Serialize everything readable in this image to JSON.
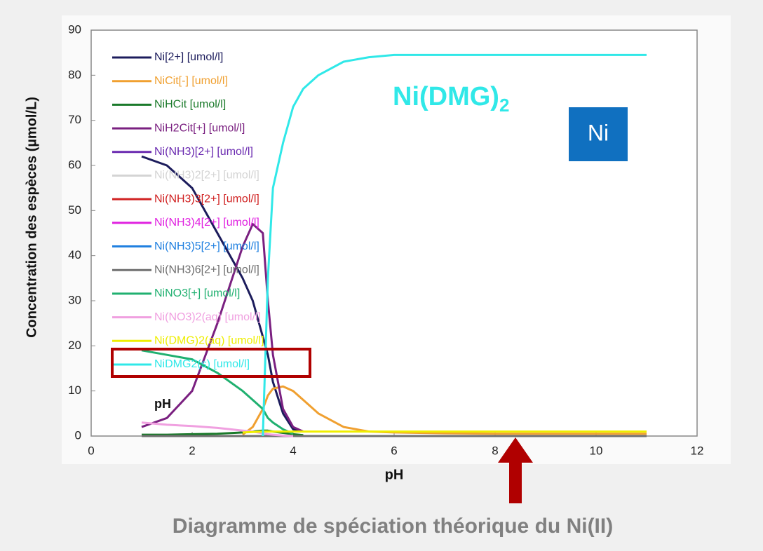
{
  "chart_data": {
    "type": "line",
    "title": "Diagramme de spéciation théorique du Ni(II)",
    "x_label": "pH",
    "y_label": "Concentration des espèces (µmol/L)",
    "x": [
      1,
      1.5,
      2,
      2.5,
      3,
      3.2,
      3.4,
      3.5,
      3.6,
      3.8,
      4,
      4.2,
      4.5,
      5,
      5.5,
      6,
      7,
      8,
      9,
      10,
      11
    ],
    "xlim": [
      0,
      12
    ],
    "xticks": [
      0,
      2,
      4,
      6,
      8,
      10,
      12
    ],
    "ylim": [
      0,
      90
    ],
    "yticks": [
      0,
      10,
      20,
      30,
      40,
      50,
      60,
      70,
      80,
      90
    ],
    "grid": false,
    "legend": "upper left",
    "series": [
      {
        "name": "Ni[2+] [umol/l]",
        "color": "#1c1c5c",
        "values": [
          62,
          60,
          55,
          45,
          35,
          30,
          22,
          18,
          12,
          5,
          1.5,
          1,
          null,
          null,
          null,
          null,
          null,
          null,
          null,
          null,
          null
        ]
      },
      {
        "name": "NiCit[-] [umol/l]",
        "color": "#f0a030",
        "values": [
          null,
          null,
          null,
          null,
          0.3,
          2,
          6,
          9,
          10.5,
          11,
          10,
          8,
          5,
          2,
          1,
          0.8,
          0.6,
          0.5,
          0.5,
          0.5,
          0.5
        ]
      },
      {
        "name": "NiHCit [umol/l]",
        "color": "#1a7a2a",
        "values": [
          0.3,
          0.3,
          0.4,
          0.5,
          0.8,
          1,
          1.2,
          1.2,
          1,
          0.7,
          0.4,
          0.2,
          null,
          null,
          null,
          null,
          null,
          null,
          null,
          null,
          null
        ]
      },
      {
        "name": "NiH2Cit[+] [umol/l]",
        "color": "#7a2080",
        "values": [
          2,
          4,
          10,
          25,
          42,
          47,
          45,
          30,
          18,
          6,
          2,
          1,
          null,
          null,
          null,
          null,
          null,
          null,
          null,
          null,
          null
        ]
      },
      {
        "name": "Ni(NH3)[2+] [umol/l]",
        "color": "#6a2ab0",
        "values": [
          0,
          0,
          0,
          0,
          0,
          0,
          0,
          0,
          0,
          0,
          0,
          0,
          0,
          0,
          0,
          0,
          0,
          0,
          0,
          0,
          0
        ]
      },
      {
        "name": "Ni(NH3)2[2+] [umol/l]",
        "color": "#d4d4d4",
        "values": [
          0,
          0,
          0,
          0,
          0,
          0,
          0,
          0,
          0,
          0,
          0,
          0,
          0,
          0,
          0,
          0,
          0,
          0,
          0,
          0,
          0
        ]
      },
      {
        "name": "Ni(NH3)3[2+] [umol/l]",
        "color": "#d02020",
        "values": [
          0,
          0,
          0,
          0,
          0,
          0,
          0,
          0,
          0,
          0,
          0,
          0,
          0,
          0,
          0,
          0,
          0,
          0,
          0,
          0,
          0
        ]
      },
      {
        "name": "Ni(NH3)4[2+] [umol/l]",
        "color": "#e020e0",
        "values": [
          0,
          0,
          0,
          0,
          0,
          0,
          0,
          0,
          0,
          0,
          0,
          0,
          0,
          0,
          0,
          0,
          0,
          0,
          0,
          0,
          0
        ]
      },
      {
        "name": "Ni(NH3)5[2+] [umol/l]",
        "color": "#2080e0",
        "values": [
          0,
          0,
          0,
          0,
          0,
          0,
          0,
          0,
          0,
          0,
          0,
          0,
          0,
          0,
          0,
          0,
          0,
          0,
          0,
          0,
          0
        ]
      },
      {
        "name": "Ni(NH3)6[2+] [umol/l]",
        "color": "#707070",
        "values": [
          0,
          0,
          0,
          0,
          0,
          0,
          0,
          0,
          0,
          0,
          0,
          0,
          0,
          0,
          0,
          0,
          0,
          0,
          0,
          0,
          0
        ]
      },
      {
        "name": "NiNO3[+] [umol/l]",
        "color": "#20b070",
        "values": [
          19,
          18,
          17,
          14,
          10,
          8,
          6,
          4,
          3,
          1.5,
          0.5,
          null,
          null,
          null,
          null,
          null,
          null,
          null,
          null,
          null,
          null
        ]
      },
      {
        "name": "Ni(NO3)2(aq) [umol/l]",
        "color": "#f0a0e0",
        "values": [
          3,
          2.5,
          2.2,
          1.8,
          1.2,
          1,
          0.6,
          0.4,
          0.3,
          0.1,
          0,
          null,
          null,
          null,
          null,
          null,
          null,
          null,
          null,
          null,
          null
        ]
      },
      {
        "name": "Ni(DMG)2(aq) [umol/l]",
        "color": "#eeee00",
        "values": [
          null,
          null,
          null,
          null,
          0.8,
          0.9,
          1,
          1,
          1,
          1,
          1,
          1,
          1,
          1,
          1,
          1,
          1,
          1,
          1,
          1,
          1
        ]
      },
      {
        "name": "NiDMG2(s) [umol/l]",
        "color": "#30e8e8",
        "values": [
          null,
          null,
          null,
          null,
          null,
          null,
          0,
          35,
          55,
          65,
          73,
          77,
          80,
          83,
          84,
          84.5,
          84.5,
          84.5,
          84.5,
          84.5,
          84.5
        ]
      }
    ],
    "annotations": {
      "product": {
        "text": "Ni(DMG)",
        "sub": "2"
      },
      "element": "Ni",
      "stray_label": "pH"
    }
  }
}
